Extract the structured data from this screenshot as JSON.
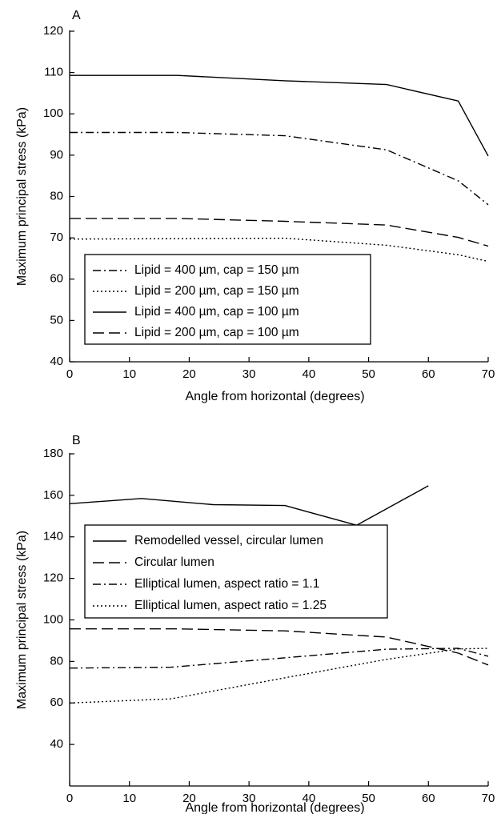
{
  "chart_data": [
    {
      "panel_label": "A",
      "type": "line",
      "xlabel": "Angle from horizontal (degrees)",
      "ylabel": "Maximum principal stress (kPa)",
      "xlim": [
        0,
        70
      ],
      "ylim": [
        40,
        120
      ],
      "xticks": [
        0,
        10,
        20,
        30,
        40,
        50,
        60,
        70
      ],
      "yticks": [
        40,
        50,
        60,
        70,
        80,
        90,
        100,
        110,
        120
      ],
      "grid": false,
      "legend_position": "bottom-left",
      "series": [
        {
          "name": "Lipid = 400 µm, cap = 150 µm",
          "dash": "dashdot",
          "x": [
            0,
            18,
            36,
            53,
            65,
            70
          ],
          "y": [
            95.5,
            95.5,
            94.7,
            91.3,
            83.8,
            78
          ]
        },
        {
          "name": "Lipid = 200 µm, cap = 150 µm",
          "dash": "dotted",
          "x": [
            0,
            18,
            36,
            53,
            65,
            70
          ],
          "y": [
            69.7,
            69.8,
            69.9,
            68.2,
            65.9,
            64.3
          ]
        },
        {
          "name": "Lipid = 400 µm, cap = 100 µm",
          "dash": "solid",
          "x": [
            0,
            18,
            36,
            53,
            65,
            70
          ],
          "y": [
            109.3,
            109.3,
            108.0,
            107.1,
            103.1,
            89.8
          ]
        },
        {
          "name": "Lipid = 200 µm, cap = 100 µm",
          "dash": "dashed",
          "x": [
            0,
            18,
            36,
            53,
            65,
            70
          ],
          "y": [
            74.7,
            74.7,
            74.0,
            73.1,
            70.1,
            68.0
          ]
        }
      ]
    },
    {
      "panel_label": "B",
      "type": "line",
      "xlabel": "Angle from horizontal (degrees)",
      "ylabel": "Maximum principal stress (kPa)",
      "xlim": [
        0,
        70
      ],
      "ylim": [
        20,
        180
      ],
      "xticks": [
        0,
        10,
        20,
        30,
        40,
        50,
        60,
        70
      ],
      "yticks": [
        40,
        60,
        80,
        100,
        120,
        140,
        160,
        180
      ],
      "grid": false,
      "legend_position": "center-left",
      "series": [
        {
          "name": "Remodelled vessel, circular lumen",
          "dash": "solid",
          "x": [
            0,
            12,
            24,
            36,
            48,
            60
          ],
          "y": [
            156,
            158.5,
            155.5,
            155.1,
            145.6,
            164.6
          ]
        },
        {
          "name": "Circular lumen",
          "dash": "dashed",
          "x": [
            0,
            18,
            36,
            53,
            65,
            70
          ],
          "y": [
            95.7,
            95.7,
            94.7,
            91.7,
            84.0,
            78.3
          ]
        },
        {
          "name": "Elliptical lumen, aspect ratio = 1.1",
          "dash": "dashdot",
          "x": [
            0,
            17,
            35,
            53,
            65,
            70
          ],
          "y": [
            76.8,
            77.2,
            81.5,
            85.9,
            86.3,
            82.5
          ]
        },
        {
          "name": "Elliptical lumen, aspect ratio = 1.25",
          "dash": "dotted",
          "x": [
            0,
            17,
            35,
            53,
            65,
            70
          ],
          "y": [
            60.0,
            62.0,
            71.6,
            81.0,
            86.0,
            86.3
          ]
        }
      ]
    }
  ]
}
